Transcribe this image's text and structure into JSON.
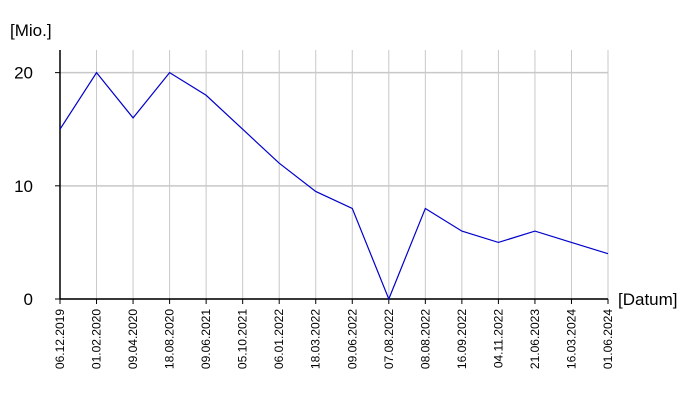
{
  "chart_data": {
    "type": "line",
    "y_label": "[Mio.]",
    "x_label": "[Datum]",
    "categories": [
      "06.12.2019",
      "01.02.2020",
      "09.04.2020",
      "18.08.2020",
      "09.06.2021",
      "05.10.2021",
      "06.01.2022",
      "18.03.2022",
      "09.06.2022",
      "07.08.2022",
      "08.08.2022",
      "16.09.2022",
      "04.11.2022",
      "21.06.2023",
      "16.03.2024",
      "01.06.2024"
    ],
    "values": [
      15,
      20,
      16,
      20,
      18,
      15,
      12,
      9.5,
      8,
      0,
      8,
      6,
      5,
      6,
      5,
      4
    ],
    "color": "#0000cc",
    "ylim": [
      0,
      22
    ],
    "yticks": [
      0,
      10,
      20
    ],
    "grid": true
  }
}
